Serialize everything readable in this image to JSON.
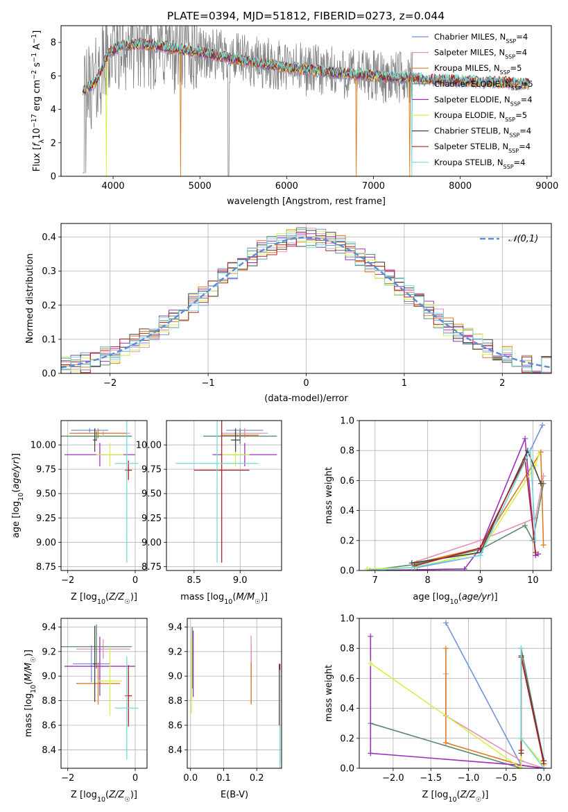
{
  "figure_title": "PLATE=0394, MJD=51812, FIBERID=0273, z=0.044",
  "models": [
    {
      "name": "Chabrier MILES",
      "nssp": "4",
      "color": "#6f93d9"
    },
    {
      "name": "Salpeter MILES",
      "nssp": "4",
      "color": "#e78fb5"
    },
    {
      "name": "Kroupa MILES",
      "nssp": "5",
      "color": "#e07b22"
    },
    {
      "name": "Chabrier ELODIE",
      "nssp": "5",
      "color": "#5a8a6a"
    },
    {
      "name": "Salpeter ELODIE",
      "nssp": "4",
      "color": "#9b30b8"
    },
    {
      "name": "Kroupa ELODIE",
      "nssp": "5",
      "color": "#d7ef4a"
    },
    {
      "name": "Chabrier STELIB",
      "nssp": "4",
      "color": "#444444"
    },
    {
      "name": "Salpeter STELIB",
      "nssp": "4",
      "color": "#b22222"
    },
    {
      "name": "Kroupa STELIB",
      "nssp": "4",
      "color": "#76d9d9"
    }
  ],
  "chart_data": [
    {
      "id": "spectrum",
      "type": "line",
      "title": "PLATE=0394, MJD=51812, FIBERID=0273, z=0.044",
      "xlabel": "wavelength [Angstrom, rest frame]",
      "ylabel": "Flux [f_λ 10^-17 erg cm^-2 s^-1 A^-1]",
      "xlim": [
        3400,
        9050
      ],
      "ylim": [
        0,
        9
      ],
      "xticks": [
        4000,
        5000,
        6000,
        7000,
        8000,
        9000
      ],
      "yticks": [
        0,
        2,
        4,
        6,
        8
      ],
      "grid": false,
      "legend": "upper right",
      "data_color": "#808080",
      "continuum": [
        [
          3650,
          5.1
        ],
        [
          3800,
          5.6
        ],
        [
          3950,
          7.4
        ],
        [
          4100,
          7.8
        ],
        [
          4300,
          7.9
        ],
        [
          4600,
          7.7
        ],
        [
          5000,
          7.4
        ],
        [
          5500,
          6.9
        ],
        [
          6000,
          6.5
        ],
        [
          6500,
          6.2
        ],
        [
          7000,
          6.0
        ],
        [
          7500,
          5.8
        ],
        [
          8000,
          5.7
        ],
        [
          8500,
          5.6
        ],
        [
          8800,
          5.5
        ]
      ],
      "data_extent": [
        3650,
        7450
      ],
      "model_extent": [
        3650,
        8800
      ],
      "dropouts": [
        {
          "x": 3920,
          "model": 5
        },
        {
          "x": 4780,
          "model": 2
        },
        {
          "x": 5330,
          "model": -1
        },
        {
          "x": 6800,
          "model": 2
        },
        {
          "x": 7420,
          "model": 2
        },
        {
          "x": 7440,
          "model": 8
        }
      ]
    },
    {
      "id": "residuals",
      "type": "step",
      "xlabel": "(data-model)/error",
      "ylabel": "Normed distribution",
      "xlim": [
        -2.5,
        2.5
      ],
      "ylim": [
        0,
        0.44
      ],
      "xticks": [
        -2,
        -1,
        0,
        1,
        2
      ],
      "yticks": [
        0.0,
        0.1,
        0.2,
        0.3,
        0.4
      ],
      "grid": true,
      "bin_width": 0.1,
      "reference": {
        "label": "𝒩(0,1)",
        "mean": 0,
        "sigma": 1,
        "color": "#5b8bd9"
      }
    },
    {
      "id": "age-vs-z",
      "type": "errorbar",
      "xlabel": "Z [log10(Z/Z☉)]",
      "ylabel": "age [log10(age/yr)]",
      "xlim": [
        -2.2,
        0.35
      ],
      "ylim": [
        8.71,
        10.25
      ],
      "xticks": [
        -2,
        0
      ],
      "yticks": [
        8.75,
        9.0,
        9.25,
        9.5,
        9.75,
        10.0
      ],
      "grid": true,
      "series": [
        {
          "model": 0,
          "x": -1.35,
          "xerr": 0.55,
          "y": 10.15,
          "yerr": 0.02
        },
        {
          "model": 1,
          "x": -0.95,
          "xerr": 0.8,
          "y": 10.12,
          "yerr": 0.02
        },
        {
          "model": 2,
          "x": -1.1,
          "xerr": 0.85,
          "y": 10.12,
          "yerr": 0.05
        },
        {
          "model": 3,
          "x": -1.15,
          "xerr": 1.05,
          "y": 10.09,
          "yerr": 0.05
        },
        {
          "model": 4,
          "x": -1.05,
          "xerr": 1.05,
          "y": 9.9,
          "yerr": 0.12
        },
        {
          "model": 5,
          "x": -0.75,
          "xerr": 0.4,
          "y": 9.9,
          "yerr": 0.12
        },
        {
          "model": 6,
          "x": -1.2,
          "xerr": 0.05,
          "y": 10.05,
          "yerr": 0.12
        },
        {
          "model": 7,
          "x": -0.2,
          "xerr": 0.1,
          "y": 9.74,
          "yerr": 0.1
        },
        {
          "model": 8,
          "x": -0.25,
          "xerr": 0.35,
          "y": 9.81,
          "yerr": 1.02
        }
      ]
    },
    {
      "id": "age-vs-mass",
      "type": "errorbar",
      "xlabel": "mass [log10(M/M☉)]",
      "ylabel": "",
      "xlim": [
        8.2,
        9.45
      ],
      "ylim": [
        8.71,
        10.25
      ],
      "xticks": [
        8.5,
        9.0
      ],
      "yticks": [
        8.75,
        9.0,
        9.25,
        9.5,
        9.75,
        10.0
      ],
      "grid": true,
      "series": [
        {
          "model": 0,
          "x": 9.05,
          "xerr": 0.2,
          "y": 10.15,
          "yerr": 0.02
        },
        {
          "model": 1,
          "x": 9.05,
          "xerr": 0.25,
          "y": 10.12,
          "yerr": 0.05
        },
        {
          "model": 2,
          "x": 9.0,
          "xerr": 0.2,
          "y": 10.1,
          "yerr": 0.05
        },
        {
          "model": 3,
          "x": 9.0,
          "xerr": 0.4,
          "y": 10.09,
          "yerr": 0.08
        },
        {
          "model": 4,
          "x": 9.05,
          "xerr": 0.35,
          "y": 9.9,
          "yerr": 0.12
        },
        {
          "model": 5,
          "x": 8.95,
          "xerr": 0.15,
          "y": 9.9,
          "yerr": 0.12
        },
        {
          "model": 6,
          "x": 8.95,
          "xerr": 0.05,
          "y": 10.05,
          "yerr": 0.12
        },
        {
          "model": 7,
          "x": 8.8,
          "xerr": 0.3,
          "y": 9.74,
          "yerr": 0.95
        },
        {
          "model": 8,
          "x": 8.75,
          "xerr": 0.45,
          "y": 9.81,
          "yerr": 1.02
        }
      ]
    },
    {
      "id": "weight-vs-age",
      "type": "line",
      "xlabel": "age [log10(age/yr)]",
      "ylabel": "mass weight",
      "xlim": [
        6.7,
        10.35
      ],
      "ylim": [
        0,
        1
      ],
      "xticks": [
        7,
        8,
        9,
        10
      ],
      "yticks": [
        0.0,
        0.2,
        0.4,
        0.6,
        0.8,
        1.0
      ],
      "grid": true,
      "series": [
        {
          "model": 0,
          "x": [
            7.8,
            9.0,
            10.18
          ],
          "y": [
            0.02,
            0.1,
            0.97
          ]
        },
        {
          "model": 1,
          "x": [
            7.7,
            9.0,
            10.05,
            10.2
          ],
          "y": [
            0.05,
            0.2,
            0.35,
            0.63
          ]
        },
        {
          "model": 2,
          "x": [
            7.8,
            9.0,
            10.15,
            10.2
          ],
          "y": [
            0.05,
            0.15,
            0.79,
            0.17
          ]
        },
        {
          "model": 3,
          "x": [
            6.85,
            7.75,
            9.0,
            9.85,
            10.0,
            10.2
          ],
          "y": [
            0.0,
            0.04,
            0.14,
            0.3,
            0.2,
            0.58
          ]
        },
        {
          "model": 4,
          "x": [
            6.9,
            8.7,
            9.0,
            9.85,
            10.05,
            10.1
          ],
          "y": [
            0.0,
            0.01,
            0.15,
            0.88,
            0.1,
            0.11
          ]
        },
        {
          "model": 5,
          "x": [
            6.85,
            7.75,
            9.0,
            10.05,
            10.12
          ],
          "y": [
            0.01,
            0.02,
            0.12,
            0.7,
            0.78
          ]
        },
        {
          "model": 6,
          "x": [
            7.7,
            9.0,
            9.9,
            10.15
          ],
          "y": [
            0.05,
            0.12,
            0.8,
            0.58
          ]
        },
        {
          "model": 7,
          "x": [
            7.75,
            9.0,
            9.85,
            10.05
          ],
          "y": [
            0.03,
            0.15,
            0.74,
            0.12
          ]
        },
        {
          "model": 8,
          "x": [
            6.9,
            7.7,
            9.0,
            9.95,
            10.05
          ],
          "y": [
            0.0,
            0.02,
            0.1,
            0.8,
            0.2
          ]
        }
      ]
    },
    {
      "id": "mass-vs-z",
      "type": "errorbar",
      "xlabel": "Z [log10(Z/Z☉)]",
      "ylabel": "mass [log10(M/M☉)]",
      "xlim": [
        -2.2,
        0.35
      ],
      "ylim": [
        8.25,
        9.47
      ],
      "xticks": [
        -2,
        0
      ],
      "yticks": [
        8.4,
        8.6,
        8.8,
        9.0,
        9.2,
        9.4
      ],
      "grid": true,
      "series": [
        {
          "model": 0,
          "x": -1.3,
          "xerr": 0.55,
          "y": 9.1,
          "yerr": 0.15
        },
        {
          "model": 1,
          "x": -0.95,
          "xerr": 0.8,
          "y": 9.22,
          "yerr": 0.08
        },
        {
          "model": 2,
          "x": -1.1,
          "xerr": 0.65,
          "y": 8.94,
          "yerr": 0.17
        },
        {
          "model": 3,
          "x": -1.15,
          "xerr": 1.05,
          "y": 9.24,
          "yerr": 0.18
        },
        {
          "model": 4,
          "x": -1.05,
          "xerr": 1.05,
          "y": 9.08,
          "yerr": 0.24
        },
        {
          "model": 5,
          "x": -0.75,
          "xerr": 0.35,
          "y": 8.96,
          "yerr": 0.28
        },
        {
          "model": 6,
          "x": -1.2,
          "xerr": 0.05,
          "y": 9.1,
          "yerr": 0.31
        },
        {
          "model": 7,
          "x": -0.2,
          "xerr": 0.1,
          "y": 8.84,
          "yerr": 0.25
        },
        {
          "model": 8,
          "x": -0.25,
          "xerr": 0.35,
          "y": 8.74,
          "yerr": 0.42
        }
      ]
    },
    {
      "id": "mass-vs-ebv",
      "type": "errorbar",
      "xlabel": "E(B-V)",
      "ylabel": "",
      "xlim": [
        -0.01,
        0.275
      ],
      "ylim": [
        8.25,
        9.47
      ],
      "xticks": [
        0.0,
        0.1,
        0.2
      ],
      "yticks": [
        8.4,
        8.6,
        8.8,
        9.0,
        9.2,
        9.4
      ],
      "grid": true,
      "series": [
        {
          "model": 0,
          "x": 0.183,
          "y": 9.1,
          "yerr": 0.15
        },
        {
          "model": 1,
          "x": 0.183,
          "y": 9.05,
          "yerr": 0.28
        },
        {
          "model": 2,
          "x": 0.183,
          "y": 8.94,
          "yerr": 0.17
        },
        {
          "model": 3,
          "x": 0.005,
          "y": 9.15,
          "yerr": 0.25
        },
        {
          "model": 4,
          "x": 0.008,
          "y": 9.1,
          "yerr": 0.27
        },
        {
          "model": 5,
          "x": 0.003,
          "y": 9.0,
          "yerr": 0.3
        },
        {
          "model": 6,
          "x": 0.27,
          "y": 8.7,
          "yerr": 0.4
        },
        {
          "model": 7,
          "x": 0.268,
          "y": 8.85,
          "yerr": 0.25
        },
        {
          "model": 8,
          "x": 0.27,
          "y": 8.65,
          "yerr": 0.4
        }
      ]
    },
    {
      "id": "weight-vs-z",
      "type": "line",
      "xlabel": "Z [log10(Z/Z☉)]",
      "ylabel": "mass weight",
      "xlim": [
        -2.45,
        0.1
      ],
      "ylim": [
        0,
        1
      ],
      "xticks": [
        -2.0,
        -1.5,
        -1.0,
        -0.5,
        0.0
      ],
      "yticks": [
        0.0,
        0.2,
        0.4,
        0.6,
        0.8,
        1.0
      ],
      "grid": true,
      "series": [
        {
          "model": 0,
          "x": [
            -1.3,
            -0.3,
            0.0
          ],
          "y": [
            0.97,
            0.02,
            0.0
          ]
        },
        {
          "model": 1,
          "x": [
            -1.3,
            -1.3,
            -0.3,
            0.0
          ],
          "y": [
            0.63,
            0.35,
            0.05,
            0.0
          ]
        },
        {
          "model": 2,
          "x": [
            -1.3,
            -1.3,
            -0.3,
            0.0
          ],
          "y": [
            0.8,
            0.17,
            0.02,
            0.0
          ]
        },
        {
          "model": 3,
          "x": [
            -2.3,
            -0.3,
            -0.3,
            0.0
          ],
          "y": [
            0.3,
            0.0,
            0.8,
            0.05
          ]
        },
        {
          "model": 4,
          "x": [
            -2.3,
            -2.3,
            -0.3,
            0.0
          ],
          "y": [
            0.88,
            0.1,
            0.02,
            0.0
          ]
        },
        {
          "model": 5,
          "x": [
            -2.3,
            -0.3,
            -0.3,
            0.0
          ],
          "y": [
            0.7,
            0.0,
            0.2,
            0.02
          ]
        },
        {
          "model": 6,
          "x": [
            -0.3,
            -0.3,
            0.0
          ],
          "y": [
            0.1,
            0.75,
            0.05
          ]
        },
        {
          "model": 7,
          "x": [
            -0.3,
            -0.3,
            0.0
          ],
          "y": [
            0.12,
            0.74,
            0.03
          ]
        },
        {
          "model": 8,
          "x": [
            -0.3,
            -0.3,
            0.0
          ],
          "y": [
            0.8,
            0.2,
            0.0
          ]
        }
      ]
    }
  ]
}
